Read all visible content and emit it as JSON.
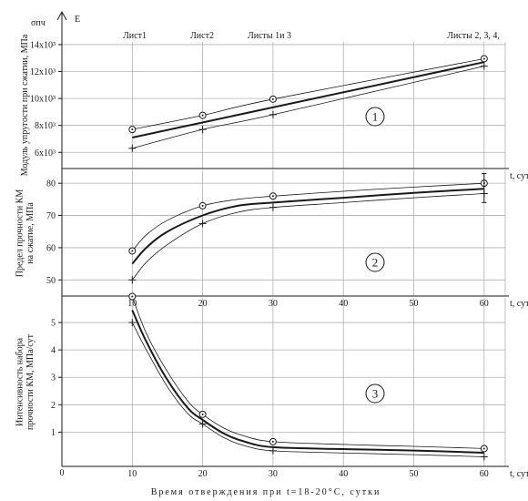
{
  "figure": {
    "footer": "Время отверждения при t=18-20°С,  сутки",
    "corner_sigma": "σпч",
    "corner_E": "E",
    "origin_label": "0",
    "sheet_labels": [
      {
        "text": "Лист1",
        "x": 10
      },
      {
        "text": "Лист2",
        "x": 20
      },
      {
        "text": "Листы 1и 3",
        "x": 30
      },
      {
        "text": "Листы 2, 3, 4,",
        "x": 60
      }
    ]
  },
  "chart_data": [
    {
      "type": "line",
      "panel_number": "1",
      "ylabel": "Модуль упругости при сжатии, МПа",
      "xlabel": "t, сут",
      "x_ticks": [
        10,
        20,
        30,
        40,
        50,
        60
      ],
      "x_tick_labels": [
        "",
        "",
        "",
        "",
        "",
        ""
      ],
      "xlim": [
        0,
        63
      ],
      "ylim": [
        4800,
        14200
      ],
      "y_ticks": [
        6000,
        8000,
        10000,
        12000,
        14000
      ],
      "y_tick_labels": [
        "6х10³",
        "8х10³",
        "10х10³",
        "12х10³",
        "14х10³"
      ],
      "grid": true,
      "series": [
        {
          "role": "upper",
          "markers": "circle",
          "x": [
            10,
            20,
            30,
            60
          ],
          "y": [
            7700,
            8750,
            9950,
            12950
          ]
        },
        {
          "role": "mean",
          "markers": "none",
          "x": [
            10,
            60
          ],
          "y": [
            7100,
            12700
          ]
        },
        {
          "role": "lower",
          "markers": "plus",
          "x": [
            10,
            20,
            30,
            60
          ],
          "y": [
            6300,
            7700,
            8800,
            12400
          ]
        }
      ]
    },
    {
      "type": "line",
      "panel_number": "2",
      "ylabel": "Предел прочности КМ на сжатие, МПа",
      "xlabel": "t, сут",
      "x_ticks": [
        10,
        20,
        30,
        40,
        50,
        60
      ],
      "x_tick_labels": [
        "10",
        "20",
        "30",
        "40",
        "50",
        "60"
      ],
      "xlim": [
        0,
        63
      ],
      "ylim": [
        45,
        84
      ],
      "y_ticks": [
        50,
        60,
        70,
        80
      ],
      "y_tick_labels": [
        "50",
        "60",
        "70",
        "80"
      ],
      "grid": true,
      "series": [
        {
          "role": "upper",
          "markers": "circle",
          "x": [
            10,
            12,
            15,
            20,
            25,
            30,
            40,
            50,
            60
          ],
          "y": [
            59,
            64,
            68.5,
            73,
            75,
            76,
            77.5,
            78.8,
            80
          ]
        },
        {
          "role": "mean",
          "markers": "none",
          "x": [
            10,
            12,
            15,
            20,
            25,
            30,
            40,
            50,
            60
          ],
          "y": [
            55,
            60,
            65,
            70,
            73,
            74,
            75.5,
            77,
            78.3
          ]
        },
        {
          "role": "lower",
          "markers": "plus",
          "x": [
            10,
            12,
            15,
            20,
            25,
            30,
            40,
            50,
            60
          ],
          "y": [
            50,
            55.5,
            61,
            67.5,
            71,
            72.5,
            74,
            75.5,
            76.8
          ]
        },
        {
          "role": "error-bar",
          "markers": "none",
          "x": [
            60,
            60
          ],
          "y": [
            74,
            83
          ]
        }
      ]
    },
    {
      "type": "line",
      "panel_number": "3",
      "ylabel": "Интенсивность набора прочности КМ, МПа/сут",
      "xlabel": "t, сут",
      "x_ticks": [
        10,
        20,
        30,
        40,
        50,
        60
      ],
      "x_tick_labels": [
        "10",
        "20",
        "30",
        "40",
        "50",
        "60"
      ],
      "xlim": [
        0,
        63
      ],
      "ylim": [
        -0.25,
        5.9
      ],
      "y_ticks": [
        1,
        2,
        3,
        4,
        5
      ],
      "y_tick_labels": [
        "1",
        "2",
        "3",
        "4",
        "5"
      ],
      "grid": true,
      "series": [
        {
          "role": "upper",
          "markers": "circle",
          "x": [
            10,
            12,
            15,
            18,
            20,
            23,
            26,
            30,
            40,
            50,
            60
          ],
          "y": [
            5.95,
            4.6,
            3.2,
            2.1,
            1.65,
            1.15,
            0.85,
            0.65,
            0.55,
            0.48,
            0.4
          ]
        },
        {
          "role": "mean",
          "markers": "none",
          "x": [
            10,
            12,
            15,
            18,
            20,
            23,
            26,
            30,
            40,
            50,
            60
          ],
          "y": [
            5.45,
            4.3,
            2.9,
            1.85,
            1.45,
            0.95,
            0.65,
            0.45,
            0.38,
            0.33,
            0.25
          ]
        },
        {
          "role": "lower",
          "markers": "plus",
          "x": [
            10,
            12,
            15,
            18,
            20,
            23,
            26,
            30,
            40,
            50,
            60
          ],
          "y": [
            5.0,
            4.0,
            2.65,
            1.65,
            1.3,
            0.8,
            0.5,
            0.32,
            0.24,
            0.18,
            0.1
          ]
        }
      ]
    }
  ]
}
